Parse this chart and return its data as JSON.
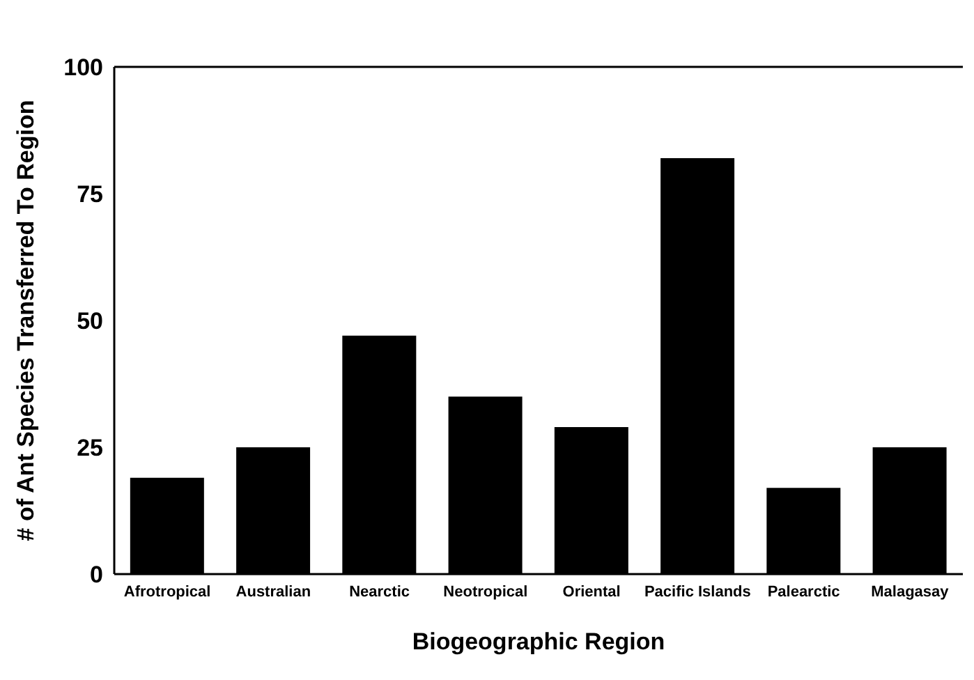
{
  "chart_data": {
    "type": "bar",
    "xlabel": "Biogeographic Region",
    "ylabel": "# of Ant Species Transferred To Region",
    "categories": [
      "Afrotropical",
      "Australian",
      "Nearctic",
      "Neotropical",
      "Oriental",
      "Pacific  Islands",
      "Palearctic",
      "Malagasay"
    ],
    "values": [
      19,
      25,
      47,
      35,
      29,
      82,
      17,
      25
    ],
    "color": "#000000",
    "ylim": [
      0,
      100
    ],
    "yticks": [
      0,
      25,
      50,
      75,
      100
    ],
    "grid": false
  }
}
